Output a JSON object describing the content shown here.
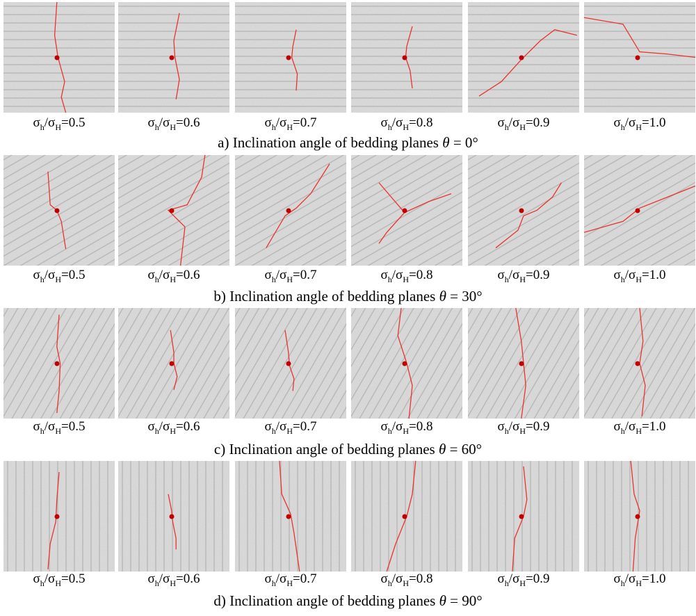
{
  "rows": [
    {
      "caption": {
        "text": "a) Inclination angle of bedding planes",
        "symbol": "θ",
        "eq": "=",
        "angle": 0,
        "unit": "°"
      },
      "panels": [
        {
          "label": [
            "σ",
            "h",
            "/σ",
            "H",
            "=0.5"
          ]
        },
        {
          "label": [
            "σ",
            "h",
            "/σ",
            "H",
            "=0.6"
          ]
        },
        {
          "label": [
            "σ",
            "h",
            "/σ",
            "H",
            "=0.7"
          ]
        },
        {
          "label": [
            "σ",
            "h",
            "/σ",
            "H",
            "=0.8"
          ]
        },
        {
          "label": [
            "σ",
            "h",
            "/σ",
            "H",
            "=0.9"
          ]
        },
        {
          "label": [
            "σ",
            "h",
            "/σ",
            "H",
            "=1.0"
          ]
        }
      ]
    },
    {
      "caption": {
        "text": "b) Inclination angle of bedding planes",
        "symbol": "θ",
        "eq": "=",
        "angle": 30,
        "unit": "°"
      },
      "panels": [
        {
          "label": [
            "σ",
            "h",
            "/σ",
            "H",
            "=0.5"
          ]
        },
        {
          "label": [
            "σ",
            "h",
            "/σ",
            "H",
            "=0.6"
          ]
        },
        {
          "label": [
            "σ",
            "h",
            "/σ",
            "H",
            "=0.7"
          ]
        },
        {
          "label": [
            "σ",
            "h",
            "/σ",
            "H",
            "=0.8"
          ]
        },
        {
          "label": [
            "σ",
            "h",
            "/σ",
            "H",
            "=0.9"
          ]
        },
        {
          "label": [
            "σ",
            "h",
            "/σ",
            "H",
            "=1.0"
          ]
        }
      ]
    },
    {
      "caption": {
        "text": "c) Inclination angle of bedding planes",
        "symbol": "θ",
        "eq": "=",
        "angle": 60,
        "unit": "°"
      },
      "panels": [
        {
          "label": [
            "σ",
            "h",
            "/σ",
            "H",
            "=0.5"
          ]
        },
        {
          "label": [
            "σ",
            "h",
            "/σ",
            "H",
            "=0.6"
          ]
        },
        {
          "label": [
            "σ",
            "h",
            "/σ",
            "H",
            "=0.7"
          ]
        },
        {
          "label": [
            "σ",
            "h",
            "/σ",
            "H",
            "=0.8"
          ]
        },
        {
          "label": [
            "σ",
            "h",
            "/σ",
            "H",
            "=0.9"
          ]
        },
        {
          "label": [
            "σ",
            "h",
            "/σ",
            "H",
            "=1.0"
          ]
        }
      ]
    },
    {
      "caption": {
        "text": "d) Inclination angle of bedding planes",
        "symbol": "θ",
        "eq": "=",
        "angle": 90,
        "unit": "°"
      },
      "panels": [
        {
          "label": [
            "σ",
            "h",
            "/σ",
            "H",
            "=0.5"
          ]
        },
        {
          "label": [
            "σ",
            "h",
            "/σ",
            "H",
            "=0.6"
          ]
        },
        {
          "label": [
            "σ",
            "h",
            "/σ",
            "H",
            "=0.7"
          ]
        },
        {
          "label": [
            "σ",
            "h",
            "/σ",
            "H",
            "=0.8"
          ]
        },
        {
          "label": [
            "σ",
            "h",
            "/σ",
            "H",
            "=0.9"
          ]
        },
        {
          "label": [
            "σ",
            "h",
            "/σ",
            "H",
            "=1.0"
          ]
        }
      ]
    }
  ]
}
